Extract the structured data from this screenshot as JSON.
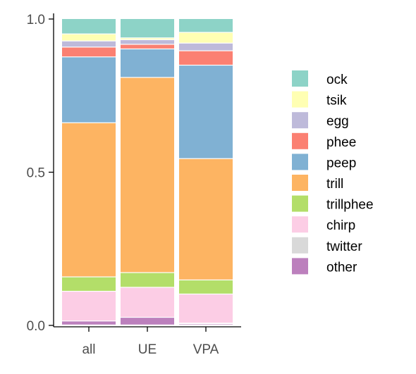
{
  "chart_data": {
    "type": "bar",
    "stacked": true,
    "categories": [
      "all",
      "UE",
      "VPA"
    ],
    "ylim": [
      0,
      1
    ],
    "yticks": [
      0.0,
      0.5,
      1.0
    ],
    "ytick_labels": [
      "0.0",
      "0.5",
      "1.0"
    ],
    "grid": false,
    "legend_position": "right",
    "series": [
      {
        "name": "other",
        "color": "#BC80BD",
        "values": [
          0.013,
          0.025,
          0.004
        ]
      },
      {
        "name": "twitter",
        "color": "#D9D9D9",
        "values": [
          0.0,
          0.0,
          0.002
        ]
      },
      {
        "name": "chirp",
        "color": "#FCCDE5",
        "values": [
          0.097,
          0.098,
          0.095
        ]
      },
      {
        "name": "trillphee",
        "color": "#B3DE69",
        "values": [
          0.047,
          0.048,
          0.046
        ]
      },
      {
        "name": "trill",
        "color": "#FDB462",
        "values": [
          0.503,
          0.637,
          0.396
        ]
      },
      {
        "name": "peep",
        "color": "#80B1D3",
        "values": [
          0.215,
          0.093,
          0.305
        ]
      },
      {
        "name": "phee",
        "color": "#FB8072",
        "values": [
          0.032,
          0.015,
          0.047
        ]
      },
      {
        "name": "egg",
        "color": "#BEBADA",
        "values": [
          0.02,
          0.015,
          0.025
        ]
      },
      {
        "name": "tsik",
        "color": "#FFFFB3",
        "values": [
          0.023,
          0.006,
          0.035
        ]
      },
      {
        "name": "ock",
        "color": "#8DD3C7",
        "values": [
          0.05,
          0.063,
          0.045
        ]
      }
    ],
    "legend_order": [
      "ock",
      "tsik",
      "egg",
      "phee",
      "peep",
      "trill",
      "trillphee",
      "chirp",
      "twitter",
      "other"
    ]
  }
}
